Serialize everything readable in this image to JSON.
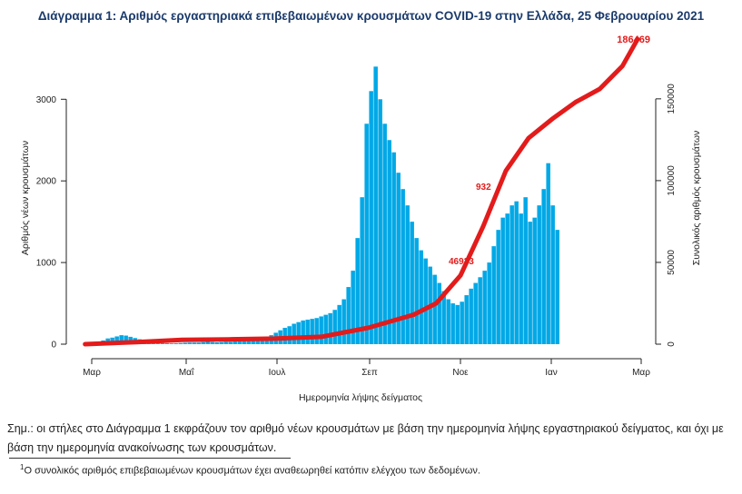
{
  "title": "Διάγραμμα 1: Αριθμός εργαστηριακά επιβεβαιωμένων κρουσμάτων COVID-19 στην Ελλάδα, 25 Φεβρουαρίου 2021",
  "note": "Σημ.: οι στήλες στο Διάγραμμα 1 εκφράζουν τον αριθμό νέων κρουσμάτων με βάση την ημερομηνία λήψης εργαστηριακού δείγματος, και όχι με βάση την ημερομηνία ανακοίνωσης των κρουσμάτων.",
  "footnote": {
    "marker": "1",
    "text": "Ο συνολικός αριθμός επιβεβαιωμένων κρουσμάτων έχει αναθεωρηθεί κατόπιν ελέγχου των δεδομένων."
  },
  "colors": {
    "bars": "#00a8e6",
    "cumulative": "#e31b1b",
    "title": "#1b3a6b"
  },
  "chart_data": {
    "type": "bar",
    "title": "Διάγραμμα 1: Αριθμός εργαστηριακά επιβεβαιωμένων κρουσμάτων COVID-19 στην Ελλάδα, 25 Φεβρουαρίου 2021",
    "xlabel": "Ημερομηνία λήψης δείγματος",
    "ylabel": "Αριθμός νέων κρουσμάτων",
    "y2label": "Συνολικός αριθμός κρουσμάτων",
    "ylim": [
      0,
      3700
    ],
    "y2lim": [
      0,
      185000
    ],
    "yticks": [
      "0",
      "1000",
      "2000",
      "3000"
    ],
    "y2ticks": [
      "0",
      "50000",
      "100000",
      "150000"
    ],
    "x_ticks": [
      "Μαρ",
      "Μαΐ",
      "Ιουλ",
      "Σεπ",
      "Νοε",
      "Ιαν",
      "Μαρ"
    ],
    "x_range": [
      "2020-02-25",
      "2021-02-25"
    ],
    "legend": "none",
    "grid": false,
    "annotations": [
      {
        "text": "186469",
        "date": "2021-02-25",
        "value": 186469,
        "series": "cumulative"
      },
      {
        "text": "932",
        "date": "2020-11-10"
      },
      {
        "text": "46933",
        "date": "2020-11-01"
      }
    ],
    "series": [
      {
        "kind": "bar",
        "axis": "left",
        "x_start": "2020-02-26",
        "step_days": 3,
        "values": [
          1,
          3,
          10,
          25,
          45,
          70,
          80,
          95,
          110,
          105,
          90,
          75,
          60,
          50,
          40,
          30,
          22,
          15,
          12,
          10,
          12,
          15,
          18,
          20,
          20,
          20,
          25,
          30,
          25,
          22,
          25,
          30,
          30,
          35,
          40,
          45,
          50,
          60,
          70,
          80,
          90,
          110,
          140,
          170,
          200,
          220,
          250,
          270,
          290,
          300,
          310,
          320,
          340,
          360,
          380,
          420,
          480,
          550,
          700,
          900,
          1300,
          1800,
          2700,
          3100,
          3400,
          3000,
          2700,
          2500,
          2350,
          2100,
          1900,
          1700,
          1500,
          1300,
          1150,
          1050,
          950,
          850,
          750,
          650,
          550,
          500,
          480,
          520,
          600,
          680,
          750,
          820,
          900,
          1000,
          1200,
          1400,
          1550,
          1600,
          1700,
          1750,
          1600,
          1800,
          1500,
          1550,
          1700,
          1900,
          2217,
          1700,
          1400
        ]
      },
      {
        "kind": "line",
        "axis": "right",
        "name": "",
        "points": [
          [
            "2020-02-26",
            0
          ],
          [
            "2020-03-31",
            1300
          ],
          [
            "2020-04-30",
            2600
          ],
          [
            "2020-05-31",
            2950
          ],
          [
            "2020-06-30",
            3400
          ],
          [
            "2020-07-31",
            4500
          ],
          [
            "2020-08-31",
            10000
          ],
          [
            "2020-09-30",
            18000
          ],
          [
            "2020-10-15",
            25000
          ],
          [
            "2020-10-31",
            42000
          ],
          [
            "2020-11-15",
            72000
          ],
          [
            "2020-11-30",
            106000
          ],
          [
            "2020-12-15",
            126000
          ],
          [
            "2020-12-31",
            138000
          ],
          [
            "2021-01-15",
            148000
          ],
          [
            "2021-01-31",
            156000
          ],
          [
            "2021-02-15",
            170000
          ],
          [
            "2021-02-25",
            186469
          ]
        ]
      }
    ]
  }
}
